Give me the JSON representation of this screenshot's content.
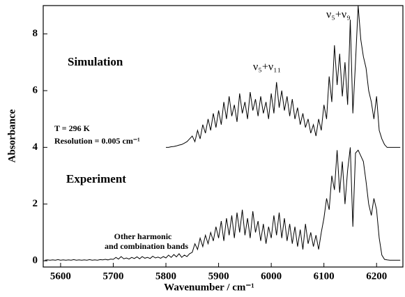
{
  "chart_data": {
    "type": "line",
    "xlabel": "Wavenumber / cm⁻¹",
    "ylabel": "Absorbance",
    "annotations": [
      "Simulation",
      "Experiment",
      "ν₅+ν₁₁",
      "ν₅+ν₉",
      "T = 296 K",
      "Resolution = 0.005 cm⁻¹",
      "Other harmonic",
      "and combination bands"
    ],
    "x": [
      5570,
      5575,
      5580,
      5585,
      5590,
      5595,
      5600,
      5605,
      5610,
      5615,
      5620,
      5625,
      5630,
      5635,
      5640,
      5645,
      5650,
      5655,
      5660,
      5665,
      5670,
      5675,
      5680,
      5685,
      5690,
      5695,
      5700,
      5705,
      5710,
      5715,
      5720,
      5725,
      5730,
      5735,
      5740,
      5745,
      5750,
      5755,
      5760,
      5765,
      5770,
      5775,
      5780,
      5785,
      5790,
      5795,
      5800,
      5805,
      5810,
      5815,
      5820,
      5825,
      5830,
      5835,
      5840,
      5845,
      5850,
      5855,
      5860,
      5865,
      5870,
      5875,
      5880,
      5885,
      5890,
      5895,
      5900,
      5905,
      5910,
      5915,
      5920,
      5925,
      5930,
      5935,
      5940,
      5945,
      5950,
      5955,
      5960,
      5965,
      5970,
      5975,
      5980,
      5985,
      5990,
      5995,
      6000,
      6005,
      6010,
      6015,
      6020,
      6025,
      6030,
      6035,
      6040,
      6045,
      6050,
      6055,
      6060,
      6065,
      6070,
      6075,
      6080,
      6085,
      6090,
      6095,
      6100,
      6105,
      6110,
      6115,
      6120,
      6125,
      6130,
      6135,
      6140,
      6145,
      6150,
      6155,
      6160,
      6165,
      6170,
      6175,
      6180,
      6185,
      6190,
      6195,
      6200,
      6205,
      6210,
      6215,
      6220,
      6225,
      6230,
      6235,
      6240,
      6245
    ],
    "series": [
      {
        "name": "Simulation",
        "color": "#000000",
        "values": [
          null,
          null,
          null,
          null,
          null,
          null,
          null,
          null,
          null,
          null,
          null,
          null,
          null,
          null,
          null,
          null,
          null,
          null,
          null,
          null,
          null,
          null,
          null,
          null,
          null,
          null,
          null,
          null,
          null,
          null,
          null,
          null,
          null,
          null,
          null,
          null,
          null,
          null,
          null,
          null,
          null,
          null,
          null,
          null,
          null,
          null,
          4.0,
          4.0,
          4.02,
          4.03,
          4.05,
          4.08,
          4.1,
          4.15,
          4.2,
          4.3,
          4.4,
          4.2,
          4.6,
          4.3,
          4.8,
          4.5,
          5.0,
          4.6,
          5.2,
          4.7,
          5.3,
          4.8,
          5.6,
          5.0,
          5.8,
          5.1,
          5.5,
          4.9,
          5.9,
          5.2,
          5.6,
          5.0,
          5.95,
          5.3,
          5.7,
          5.1,
          5.8,
          5.2,
          5.6,
          5.0,
          5.9,
          5.2,
          6.3,
          5.4,
          6.0,
          5.3,
          5.8,
          5.1,
          5.7,
          5.0,
          5.4,
          4.8,
          5.2,
          4.7,
          5.0,
          4.5,
          4.8,
          4.4,
          5.0,
          4.6,
          5.5,
          5.0,
          6.5,
          5.6,
          7.6,
          6.2,
          7.3,
          5.8,
          7.0,
          5.5,
          8.5,
          5.2,
          7.0,
          9.0,
          7.8,
          7.2,
          6.8,
          6.0,
          5.6,
          5.0,
          5.8,
          4.6,
          4.3,
          4.1,
          4.0,
          4.0,
          4.0,
          4.0,
          4.0,
          4.0
        ]
      },
      {
        "name": "Experiment",
        "color": "#000000",
        "values": [
          0.02,
          0.03,
          0.02,
          0.03,
          0.02,
          0.04,
          0.02,
          0.03,
          0.02,
          0.03,
          0.02,
          0.04,
          0.02,
          0.03,
          0.02,
          0.03,
          0.02,
          0.04,
          0.02,
          0.03,
          0.02,
          0.04,
          0.03,
          0.05,
          0.03,
          0.06,
          0.05,
          0.12,
          0.06,
          0.15,
          0.07,
          0.1,
          0.06,
          0.12,
          0.08,
          0.14,
          0.07,
          0.15,
          0.09,
          0.12,
          0.08,
          0.16,
          0.1,
          0.13,
          0.09,
          0.15,
          0.1,
          0.2,
          0.12,
          0.22,
          0.14,
          0.25,
          0.12,
          0.2,
          0.15,
          0.25,
          0.3,
          0.6,
          0.4,
          0.8,
          0.5,
          0.9,
          0.6,
          1.0,
          0.7,
          1.2,
          0.8,
          1.4,
          0.7,
          1.5,
          0.9,
          1.6,
          0.8,
          1.7,
          1.0,
          1.8,
          0.9,
          1.5,
          0.8,
          1.75,
          1.0,
          1.4,
          0.7,
          1.3,
          0.6,
          1.2,
          0.8,
          1.6,
          0.9,
          1.7,
          0.8,
          1.5,
          0.7,
          1.3,
          0.6,
          1.2,
          0.5,
          1.1,
          0.4,
          1.3,
          0.6,
          1.0,
          0.5,
          0.9,
          0.4,
          1.0,
          1.5,
          2.2,
          1.8,
          3.0,
          2.5,
          3.9,
          2.4,
          3.5,
          2.0,
          3.2,
          4.0,
          1.2,
          3.8,
          3.9,
          3.7,
          3.5,
          2.8,
          2.0,
          1.6,
          2.2,
          1.8,
          0.8,
          0.2,
          0.05,
          0.03,
          0.02,
          0.02,
          0.02,
          0.02,
          0.02
        ]
      }
    ],
    "xlim": [
      5567,
      6250
    ],
    "ylim": [
      -0.22,
      9.0
    ],
    "xticks": [
      5600,
      5700,
      5800,
      5900,
      6000,
      6100,
      6200
    ],
    "yticks": [
      0,
      2,
      4,
      6,
      8
    ]
  }
}
